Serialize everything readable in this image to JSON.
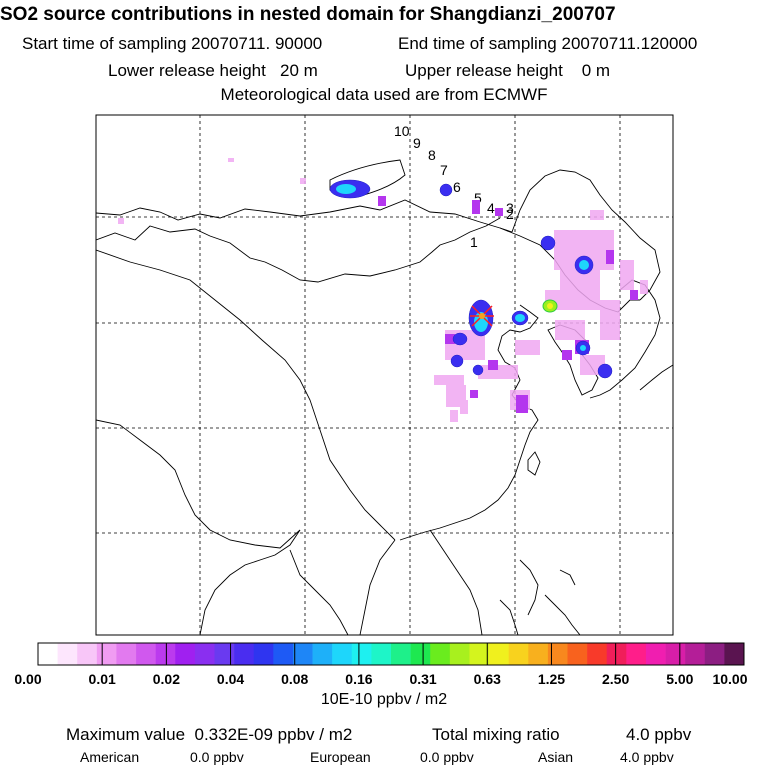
{
  "header": {
    "title": "SO2 source contributions in nested domain for Shangdianzi_200707",
    "start_label": "Start time of sampling",
    "start_value": "20070711. 90000",
    "end_label": "End time of sampling",
    "end_value": "20070711.120000",
    "lower_label": "Lower release height",
    "lower_value": "20 m",
    "upper_label": "Upper release height",
    "upper_value": "0 m",
    "met_note": "Meteorological data used are from ECMWF"
  },
  "map": {
    "trajectory_labels": [
      "10",
      "9",
      "8",
      "7",
      "6",
      "5",
      "4",
      "3",
      "2",
      "1"
    ],
    "station_color": "#ff2020",
    "grid_lines": "dashed",
    "blobs": [
      {
        "lon_i": 0.0,
        "lat_i": 0.0,
        "level": 6
      }
    ]
  },
  "colorbar": {
    "tick_labels": [
      "0.00",
      "0.01",
      "0.02",
      "0.04",
      "0.08",
      "0.16",
      "0.31",
      "0.63",
      "1.25",
      "2.50",
      "5.00",
      "10.00"
    ],
    "colors": [
      "#ffffff",
      "#fde6fd",
      "#f8c6f8",
      "#f09cf2",
      "#e27aef",
      "#d058ee",
      "#bb3aee",
      "#a020f0",
      "#8a2ff0",
      "#6a3af0",
      "#4a2df0",
      "#2f35f0",
      "#1e5af5",
      "#1e86f7",
      "#1eb0f9",
      "#1ed6fb",
      "#1ef0f0",
      "#1ef5c8",
      "#1ef08a",
      "#1ee850",
      "#6aec1e",
      "#a8f01e",
      "#d4f41e",
      "#f0f01e",
      "#f8d21e",
      "#f8b01e",
      "#f8881e",
      "#f8621e",
      "#f83a2a",
      "#f01e5a",
      "#ff1e8a",
      "#f01eb0",
      "#d81ea8",
      "#b41e98",
      "#8c1e82",
      "#5a1450"
    ],
    "unit": "10E-10 ppbv / m2"
  },
  "stats": {
    "max_label": "Maximum value",
    "max_value": "0.332E-09 ppbv / m2",
    "total_label": "Total mixing ratio",
    "total_value": "4.0 ppbv",
    "american_label": "American",
    "american_value": "0.0 ppbv",
    "european_label": "European",
    "european_value": "0.0 ppbv",
    "asian_label": "Asian",
    "asian_value": "4.0 ppbv"
  }
}
